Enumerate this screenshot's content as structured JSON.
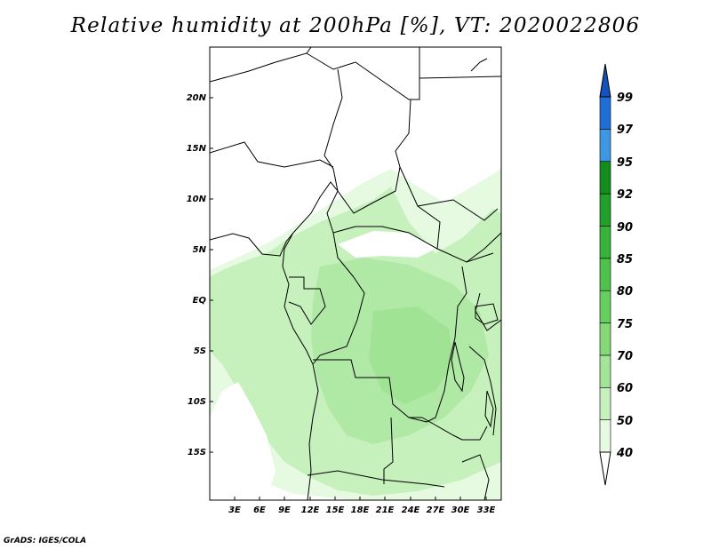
{
  "title": "Relative humidity at 200hPa [%], VT: 2020022806",
  "credit": "GrADS: IGES/COLA",
  "map": {
    "lat_labels": [
      "20N",
      "15N",
      "10N",
      "5N",
      "EQ",
      "5S",
      "10S",
      "15S"
    ],
    "lon_labels": [
      "3E",
      "6E",
      "9E",
      "12E",
      "15E",
      "18E",
      "21E",
      "24E",
      "27E",
      "30E",
      "33E"
    ]
  },
  "colorbar": {
    "labels": [
      "40",
      "50",
      "60",
      "70",
      "75",
      "80",
      "85",
      "90",
      "92",
      "95",
      "97",
      "99"
    ],
    "colors": [
      "#ffffff",
      "#e6fae1",
      "#c6f0bc",
      "#a4e498",
      "#86d978",
      "#67cf5f",
      "#4ec24b",
      "#36b43a",
      "#21a02b",
      "#148c1e",
      "#3f97e3",
      "#1f6fd6",
      "#1451bc"
    ]
  }
}
